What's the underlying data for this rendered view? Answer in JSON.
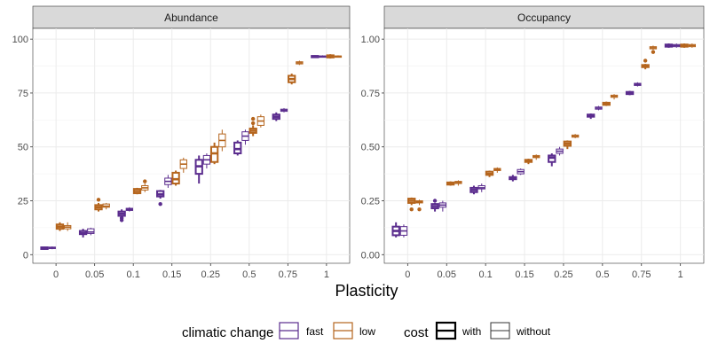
{
  "chart_data": [
    {
      "type": "boxplot",
      "panel_title": "Abundance",
      "categories": [
        "0",
        "0.05",
        "0.1",
        "0.15",
        "0.25",
        "0.5",
        "0.75",
        "1"
      ],
      "yticks": [
        0,
        25,
        50,
        75,
        100
      ],
      "ylim": [
        -4,
        105
      ],
      "grid": true,
      "series": [
        {
          "name": "fast with",
          "values": [
            {
              "q1": 2.6,
              "med": 3,
              "q3": 3.4,
              "lo": 2.3,
              "hi": 3.7,
              "out": []
            },
            {
              "q1": 9.5,
              "med": 10,
              "q3": 11,
              "lo": 8,
              "hi": 12,
              "out": []
            },
            {
              "q1": 18,
              "med": 19,
              "q3": 20,
              "lo": 16,
              "hi": 21,
              "out": [
                16,
                17
              ]
            },
            {
              "q1": 27,
              "med": 28,
              "q3": 29.5,
              "lo": 26,
              "hi": 30,
              "out": [
                23.5
              ]
            },
            {
              "q1": 37.5,
              "med": 41,
              "q3": 44,
              "lo": 33,
              "hi": 46,
              "out": []
            },
            {
              "q1": 47,
              "med": 49,
              "q3": 52,
              "lo": 46,
              "hi": 53,
              "out": []
            },
            {
              "q1": 63,
              "med": 64,
              "q3": 65,
              "lo": 62,
              "hi": 66,
              "out": []
            },
            {
              "q1": 91.8,
              "med": 92,
              "q3": 92.2,
              "lo": 91.5,
              "hi": 92.5,
              "out": []
            }
          ]
        },
        {
          "name": "fast without",
          "values": [
            {
              "q1": 2.8,
              "med": 3.1,
              "q3": 3.5,
              "lo": 2.5,
              "hi": 3.8,
              "out": []
            },
            {
              "q1": 9.8,
              "med": 10.5,
              "q3": 12,
              "lo": 9,
              "hi": 12.5,
              "out": []
            },
            {
              "q1": 20.5,
              "med": 21,
              "q3": 21.5,
              "lo": 20,
              "hi": 22,
              "out": []
            },
            {
              "q1": 32.5,
              "med": 34,
              "q3": 35.5,
              "lo": 31,
              "hi": 37,
              "out": []
            },
            {
              "q1": 42,
              "med": 44,
              "q3": 46,
              "lo": 40,
              "hi": 47,
              "out": []
            },
            {
              "q1": 53,
              "med": 55,
              "q3": 57,
              "lo": 51,
              "hi": 58,
              "out": []
            },
            {
              "q1": 66.5,
              "med": 67,
              "q3": 67.5,
              "lo": 66,
              "hi": 68,
              "out": []
            },
            {
              "q1": 91.8,
              "med": 92,
              "q3": 92.2,
              "lo": 91.5,
              "hi": 92.5,
              "out": []
            }
          ]
        },
        {
          "name": "low with",
          "values": [
            {
              "q1": 12,
              "med": 13,
              "q3": 14,
              "lo": 11,
              "hi": 15,
              "out": []
            },
            {
              "q1": 21,
              "med": 22,
              "q3": 23,
              "lo": 20,
              "hi": 24,
              "out": [
                25.5
              ]
            },
            {
              "q1": 28.5,
              "med": 29.5,
              "q3": 30.5,
              "lo": 28,
              "hi": 31,
              "out": []
            },
            {
              "q1": 33,
              "med": 35,
              "q3": 38,
              "lo": 32,
              "hi": 39,
              "out": []
            },
            {
              "q1": 43,
              "med": 47,
              "q3": 50,
              "lo": 42,
              "hi": 52,
              "out": []
            },
            {
              "q1": 56.5,
              "med": 57.5,
              "q3": 58.5,
              "lo": 55,
              "hi": 60,
              "out": [
                61,
                63
              ]
            },
            {
              "q1": 80,
              "med": 81.5,
              "q3": 83,
              "lo": 79,
              "hi": 84,
              "out": []
            },
            {
              "q1": 91.5,
              "med": 92,
              "q3": 92.5,
              "lo": 91,
              "hi": 93,
              "out": []
            }
          ]
        },
        {
          "name": "low without",
          "values": [
            {
              "q1": 12,
              "med": 12.8,
              "q3": 13.5,
              "lo": 11,
              "hi": 15,
              "out": []
            },
            {
              "q1": 22,
              "med": 22.5,
              "q3": 23.5,
              "lo": 21,
              "hi": 24,
              "out": []
            },
            {
              "q1": 30,
              "med": 31,
              "q3": 32,
              "lo": 29,
              "hi": 33,
              "out": [
                34
              ]
            },
            {
              "q1": 40,
              "med": 42,
              "q3": 44,
              "lo": 38,
              "hi": 45,
              "out": []
            },
            {
              "q1": 50,
              "med": 53,
              "q3": 56,
              "lo": 48,
              "hi": 58,
              "out": []
            },
            {
              "q1": 60,
              "med": 62,
              "q3": 64,
              "lo": 59,
              "hi": 65,
              "out": []
            },
            {
              "q1": 88.5,
              "med": 89,
              "q3": 89.5,
              "lo": 88,
              "hi": 90,
              "out": []
            },
            {
              "q1": 91.8,
              "med": 92,
              "q3": 92.2,
              "lo": 91.5,
              "hi": 92.5,
              "out": []
            }
          ]
        }
      ]
    },
    {
      "type": "boxplot",
      "panel_title": "Occupancy",
      "categories": [
        "0",
        "0.05",
        "0.1",
        "0.15",
        "0.25",
        "0.5",
        "0.75",
        "1"
      ],
      "yticks": [
        "0.00",
        "0.25",
        "0.50",
        "0.75",
        "1.00"
      ],
      "ytick_values": [
        0,
        0.25,
        0.5,
        0.75,
        1
      ],
      "ylim": [
        -0.04,
        1.05
      ],
      "grid": true,
      "series": [
        {
          "name": "fast with",
          "values": [
            {
              "q1": 0.09,
              "med": 0.11,
              "q3": 0.13,
              "lo": 0.08,
              "hi": 0.15,
              "out": []
            },
            {
              "q1": 0.215,
              "med": 0.225,
              "q3": 0.235,
              "lo": 0.2,
              "hi": 0.24,
              "out": [
                0.25
              ]
            },
            {
              "q1": 0.29,
              "med": 0.3,
              "q3": 0.31,
              "lo": 0.28,
              "hi": 0.32,
              "out": []
            },
            {
              "q1": 0.35,
              "med": 0.355,
              "q3": 0.36,
              "lo": 0.34,
              "hi": 0.37,
              "out": []
            },
            {
              "q1": 0.43,
              "med": 0.45,
              "q3": 0.46,
              "lo": 0.41,
              "hi": 0.47,
              "out": []
            },
            {
              "q1": 0.64,
              "med": 0.645,
              "q3": 0.65,
              "lo": 0.63,
              "hi": 0.655,
              "out": []
            },
            {
              "q1": 0.745,
              "med": 0.75,
              "q3": 0.755,
              "lo": 0.74,
              "hi": 0.76,
              "out": []
            },
            {
              "q1": 0.965,
              "med": 0.97,
              "q3": 0.975,
              "lo": 0.96,
              "hi": 0.98,
              "out": []
            }
          ]
        },
        {
          "name": "fast without",
          "values": [
            {
              "q1": 0.09,
              "med": 0.11,
              "q3": 0.13,
              "lo": 0.08,
              "hi": 0.14,
              "out": []
            },
            {
              "q1": 0.22,
              "med": 0.23,
              "q3": 0.24,
              "lo": 0.2,
              "hi": 0.25,
              "out": []
            },
            {
              "q1": 0.305,
              "med": 0.31,
              "q3": 0.32,
              "lo": 0.29,
              "hi": 0.33,
              "out": []
            },
            {
              "q1": 0.375,
              "med": 0.385,
              "q3": 0.395,
              "lo": 0.37,
              "hi": 0.4,
              "out": []
            },
            {
              "q1": 0.47,
              "med": 0.48,
              "q3": 0.49,
              "lo": 0.46,
              "hi": 0.5,
              "out": []
            },
            {
              "q1": 0.675,
              "med": 0.68,
              "q3": 0.685,
              "lo": 0.67,
              "hi": 0.69,
              "out": []
            },
            {
              "q1": 0.785,
              "med": 0.79,
              "q3": 0.795,
              "lo": 0.78,
              "hi": 0.8,
              "out": []
            },
            {
              "q1": 0.965,
              "med": 0.97,
              "q3": 0.975,
              "lo": 0.96,
              "hi": 0.98,
              "out": []
            }
          ]
        },
        {
          "name": "low with",
          "values": [
            {
              "q1": 0.24,
              "med": 0.25,
              "q3": 0.26,
              "lo": 0.23,
              "hi": 0.265,
              "out": [
                0.21
              ]
            },
            {
              "q1": 0.325,
              "med": 0.33,
              "q3": 0.335,
              "lo": 0.32,
              "hi": 0.34,
              "out": []
            },
            {
              "q1": 0.37,
              "med": 0.375,
              "q3": 0.385,
              "lo": 0.36,
              "hi": 0.39,
              "out": []
            },
            {
              "q1": 0.43,
              "med": 0.435,
              "q3": 0.44,
              "lo": 0.42,
              "hi": 0.445,
              "out": []
            },
            {
              "q1": 0.505,
              "med": 0.515,
              "q3": 0.525,
              "lo": 0.49,
              "hi": 0.53,
              "out": []
            },
            {
              "q1": 0.695,
              "med": 0.7,
              "q3": 0.705,
              "lo": 0.69,
              "hi": 0.71,
              "out": []
            },
            {
              "q1": 0.87,
              "med": 0.875,
              "q3": 0.88,
              "lo": 0.86,
              "hi": 0.885,
              "out": [
                0.9
              ]
            },
            {
              "q1": 0.965,
              "med": 0.97,
              "q3": 0.975,
              "lo": 0.96,
              "hi": 0.98,
              "out": []
            }
          ]
        },
        {
          "name": "low without",
          "values": [
            {
              "q1": 0.24,
              "med": 0.245,
              "q3": 0.25,
              "lo": 0.23,
              "hi": 0.255,
              "out": [
                0.21
              ]
            },
            {
              "q1": 0.33,
              "med": 0.335,
              "q3": 0.34,
              "lo": 0.32,
              "hi": 0.345,
              "out": []
            },
            {
              "q1": 0.39,
              "med": 0.395,
              "q3": 0.4,
              "lo": 0.38,
              "hi": 0.405,
              "out": []
            },
            {
              "q1": 0.45,
              "med": 0.455,
              "q3": 0.46,
              "lo": 0.44,
              "hi": 0.465,
              "out": []
            },
            {
              "q1": 0.545,
              "med": 0.55,
              "q3": 0.555,
              "lo": 0.54,
              "hi": 0.56,
              "out": []
            },
            {
              "q1": 0.73,
              "med": 0.735,
              "q3": 0.74,
              "lo": 0.72,
              "hi": 0.745,
              "out": []
            },
            {
              "q1": 0.955,
              "med": 0.96,
              "q3": 0.965,
              "lo": 0.95,
              "hi": 0.97,
              "out": [
                0.94
              ]
            },
            {
              "q1": 0.965,
              "med": 0.97,
              "q3": 0.975,
              "lo": 0.96,
              "hi": 0.98,
              "out": []
            }
          ]
        }
      ]
    }
  ],
  "xlabel": "Plasticity",
  "legend": {
    "climate_title": "climatic change",
    "climate_items": [
      {
        "label": "fast",
        "color": "#5b2d8e"
      },
      {
        "label": "low",
        "color": "#b5651d"
      }
    ],
    "cost_title": "cost",
    "cost_items": [
      {
        "label": "with",
        "style": "filled"
      },
      {
        "label": "without",
        "style": "open"
      }
    ]
  },
  "colors": {
    "fast": "#5b2d8e",
    "low": "#b5651d",
    "strip": "#d9d9d9",
    "grid": "#ebebeb"
  }
}
